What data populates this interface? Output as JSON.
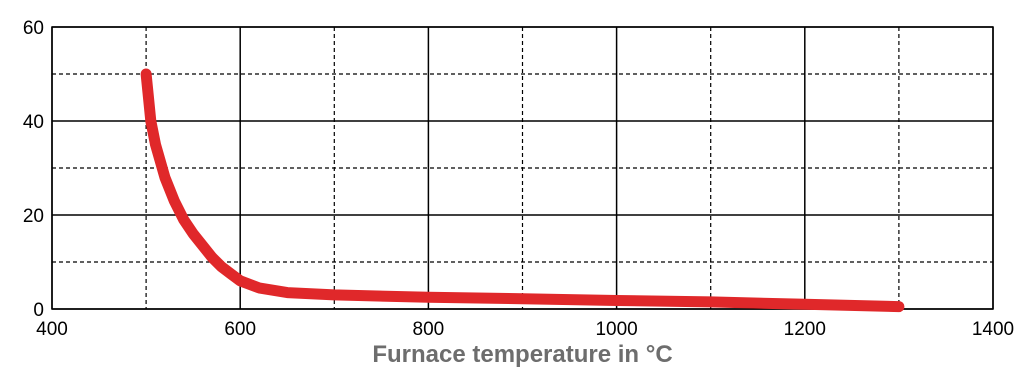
{
  "chart_data": {
    "type": "line",
    "title": "",
    "xlabel": "Furnace temperature in °C",
    "ylabel": "",
    "xlim": [
      400,
      1400
    ],
    "ylim": [
      0,
      60
    ],
    "x_ticks": [
      400,
      600,
      800,
      1000,
      1200,
      1400
    ],
    "y_ticks": [
      0,
      20,
      40,
      60
    ],
    "x_tick_labels": [
      "400",
      "600",
      "800",
      "1000",
      "1200",
      "1400"
    ],
    "y_tick_labels": [
      "0",
      "20",
      "40",
      "60"
    ],
    "minor_grid_x": [
      500,
      700,
      900,
      1100,
      1300
    ],
    "minor_grid_y": [
      10,
      30,
      50
    ],
    "grid": true,
    "legend": "none",
    "series": [
      {
        "color": "#e0282a",
        "x": [
          500,
          502,
          505,
          510,
          520,
          530,
          540,
          550,
          560,
          570,
          580,
          590,
          600,
          620,
          650,
          700,
          800,
          900,
          1000,
          1100,
          1200,
          1300
        ],
        "y": [
          50,
          46,
          40,
          35,
          28,
          23,
          19,
          16,
          13.5,
          11,
          9,
          7.5,
          6,
          4.5,
          3.5,
          3,
          2.5,
          2.2,
          1.8,
          1.5,
          1,
          0.5
        ]
      }
    ]
  }
}
